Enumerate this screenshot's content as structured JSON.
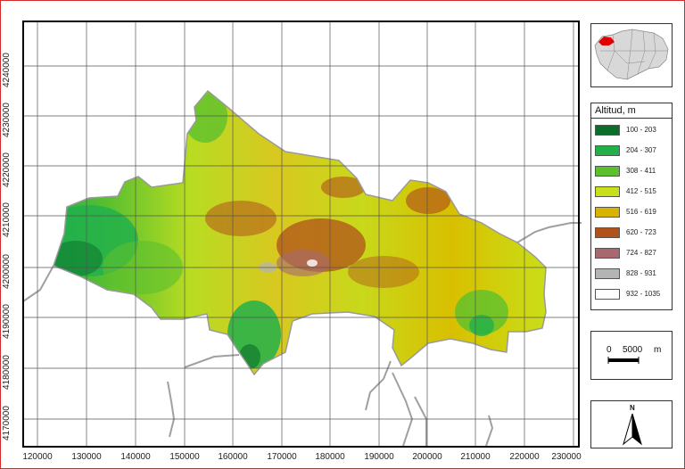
{
  "map": {
    "x_axis_ticks": [
      "120000",
      "130000",
      "140000",
      "150000",
      "160000",
      "170000",
      "180000",
      "190000",
      "200000",
      "210000",
      "220000",
      "230000"
    ],
    "y_axis_ticks": [
      "4240000",
      "4230000",
      "4220000",
      "4210000",
      "4200000",
      "4190000",
      "4180000",
      "4170000"
    ],
    "colors": {
      "frame_border": "#d42a2a",
      "grid": "#555555",
      "boundary_lines": "#a0a0a0",
      "highlight_region": "#e00000"
    }
  },
  "locator_map": {
    "icon": "andalusia-locator-map-icon"
  },
  "legend": {
    "title": "Altitud, m",
    "classes": [
      {
        "label": "100 - 203",
        "color": "#0a6e2a"
      },
      {
        "label": "204 - 307",
        "color": "#22b04b"
      },
      {
        "label": "308 - 411",
        "color": "#5cc02e"
      },
      {
        "label": "412 - 515",
        "color": "#c8e01a"
      },
      {
        "label": "516 - 619",
        "color": "#d8b400"
      },
      {
        "label": "620 - 723",
        "color": "#b0521a"
      },
      {
        "label": "724 - 827",
        "color": "#a86870"
      },
      {
        "label": "828 - 931",
        "color": "#b4b4b4"
      },
      {
        "label": "932 - 1035",
        "color": "#ffffff"
      }
    ]
  },
  "scale_bar": {
    "zero_label": "0",
    "distance_label": "5000",
    "unit": "m"
  },
  "north_arrow": {
    "label": "N",
    "icon": "north-arrow-icon"
  }
}
